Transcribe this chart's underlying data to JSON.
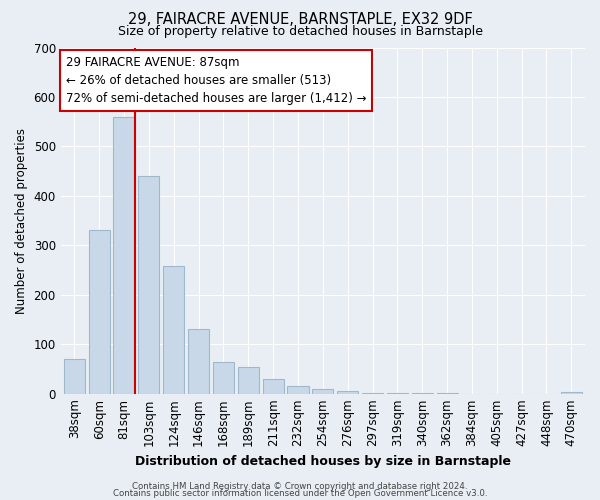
{
  "title": "29, FAIRACRE AVENUE, BARNSTAPLE, EX32 9DF",
  "subtitle": "Size of property relative to detached houses in Barnstaple",
  "xlabel": "Distribution of detached houses by size in Barnstaple",
  "ylabel": "Number of detached properties",
  "bar_labels": [
    "38sqm",
    "60sqm",
    "81sqm",
    "103sqm",
    "124sqm",
    "146sqm",
    "168sqm",
    "189sqm",
    "211sqm",
    "232sqm",
    "254sqm",
    "276sqm",
    "297sqm",
    "319sqm",
    "340sqm",
    "362sqm",
    "384sqm",
    "405sqm",
    "427sqm",
    "448sqm",
    "470sqm"
  ],
  "bar_values": [
    70,
    330,
    560,
    440,
    258,
    130,
    65,
    53,
    30,
    15,
    10,
    5,
    2,
    1,
    1,
    1,
    0,
    0,
    0,
    0,
    3
  ],
  "bar_color": "#c8d8e8",
  "bar_edgecolor": "#a0b8cc",
  "ylim": [
    0,
    700
  ],
  "yticks": [
    0,
    100,
    200,
    300,
    400,
    500,
    600,
    700
  ],
  "vline_index": 2,
  "vline_color": "#cc0000",
  "annotation_title": "29 FAIRACRE AVENUE: 87sqm",
  "annotation_line1": "← 26% of detached houses are smaller (513)",
  "annotation_line2": "72% of semi-detached houses are larger (1,412) →",
  "annotation_box_facecolor": "#ffffff",
  "annotation_box_edgecolor": "#cc0000",
  "footer1": "Contains HM Land Registry data © Crown copyright and database right 2024.",
  "footer2": "Contains public sector information licensed under the Open Government Licence v3.0.",
  "background_color": "#e8eef4",
  "plot_bg_color": "#e8eef4"
}
